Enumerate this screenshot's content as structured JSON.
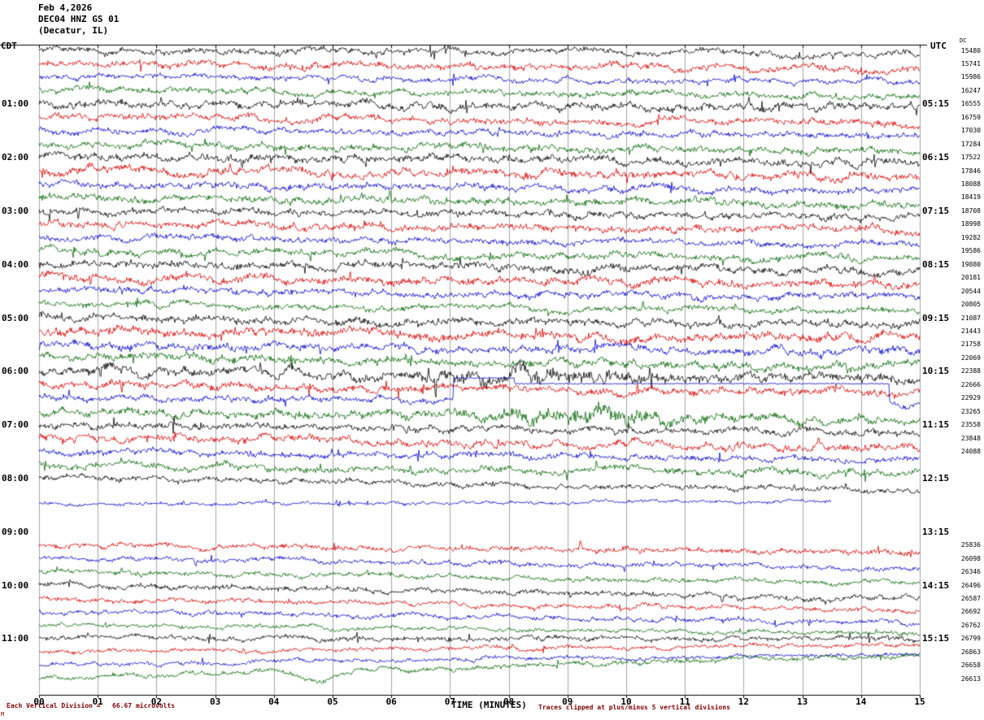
{
  "header": {
    "date": "Feb 4,2026",
    "station": "DEC04 HNZ GS 01",
    "location": "(Decatur, IL)"
  },
  "axes": {
    "left_tz": "CDT",
    "right_tz": "UTC",
    "values_header": "DC",
    "xlabel": "TIME (MINUTES)",
    "x_ticks": [
      "00",
      "01",
      "02",
      "03",
      "04",
      "05",
      "06",
      "07",
      "08",
      "09",
      "10",
      "11",
      "12",
      "13",
      "14",
      "15"
    ]
  },
  "footer": {
    "left": "Each Vertical Division =   66.67 microvolts",
    "right": "Traces clipped at plus/minus 5 vertical divisions",
    "corner": "M"
  },
  "colors": {
    "black": "#000000",
    "red": "#d70000",
    "blue": "#0000cc",
    "green": "#006600",
    "grid": "#a6a6a6",
    "footer_text": "#800000"
  },
  "chart_data": {
    "type": "line",
    "subtype": "seismogram-helicorder",
    "title": "DEC04 HNZ GS 01 (Decatur, IL) Feb 4,2026",
    "xlabel": "TIME (MINUTES)",
    "x_range_minutes": [
      0,
      15
    ],
    "minutes_per_row": 15,
    "rows_per_hour": 4,
    "first_label_row": 4,
    "grid": "vertical-minute-lines",
    "note": "Continuous ambient seismic noise traces; each horizontal line spans 15 minutes; colors cycle black/red/blue/green; left margin = CDT start time of each hour, right margin = UTC time plus DC offset value per trace; station data gap between roughly 08:15 and 09:15 CDT; one blue trace (10:15 UTC hour) flatlines partway across.",
    "left_labels": [
      "01:00",
      "02:00",
      "03:00",
      "04:00",
      "05:00",
      "06:00",
      "07:00",
      "08:00",
      "09:00",
      "10:00",
      "11:00"
    ],
    "right_labels": [
      "05:15",
      "06:15",
      "07:15",
      "08:15",
      "09:15",
      "10:15",
      "11:15",
      "12:15",
      "13:15",
      "14:15",
      "15:15"
    ],
    "rows": [
      {
        "color": "black",
        "amp": 4.5,
        "drift": 6,
        "width": 1,
        "value": 15480
      },
      {
        "color": "red",
        "amp": 5.0,
        "drift": 7,
        "width": 1,
        "value": 15741
      },
      {
        "color": "blue",
        "amp": 4.0,
        "drift": 6,
        "width": 1,
        "value": 15986
      },
      {
        "color": "green",
        "amp": 4.5,
        "drift": 8,
        "width": 1,
        "value": 16247
      },
      {
        "color": "black",
        "amp": 5.5,
        "drift": 7,
        "width": 1,
        "value": 16555
      },
      {
        "color": "red",
        "amp": 5.0,
        "drift": 8,
        "width": 1,
        "value": 16759
      },
      {
        "color": "blue",
        "amp": 4.5,
        "drift": 7,
        "width": 1,
        "value": 17030
      },
      {
        "color": "green",
        "amp": 5.0,
        "drift": 9,
        "width": 1,
        "value": 17284
      },
      {
        "color": "black",
        "amp": 5.5,
        "drift": 8,
        "width": 1,
        "value": 17522
      },
      {
        "color": "red",
        "amp": 6.0,
        "drift": 8,
        "width": 1,
        "value": 17846
      },
      {
        "color": "blue",
        "amp": 5.0,
        "drift": 9,
        "width": 1,
        "value": 18088
      },
      {
        "color": "green",
        "amp": 5.5,
        "drift": 10,
        "width": 1,
        "value": 18419
      },
      {
        "color": "black",
        "amp": 5.0,
        "drift": 8,
        "width": 1,
        "value": 18708
      },
      {
        "color": "red",
        "amp": 5.5,
        "drift": 8,
        "width": 1,
        "value": 18998
      },
      {
        "color": "blue",
        "amp": 4.5,
        "drift": 9,
        "width": 1,
        "value": 19282
      },
      {
        "color": "green",
        "amp": 5.0,
        "drift": 10,
        "width": 1,
        "value": 19586
      },
      {
        "color": "black",
        "amp": 5.5,
        "drift": 9,
        "width": 1,
        "value": 19880
      },
      {
        "color": "red",
        "amp": 6.0,
        "drift": 10,
        "width": 1,
        "value": 20181
      },
      {
        "color": "blue",
        "amp": 5.0,
        "drift": 9,
        "width": 1,
        "value": 20544
      },
      {
        "color": "green",
        "amp": 4.5,
        "drift": 10,
        "width": 1,
        "value": 20805
      },
      {
        "color": "black",
        "amp": 5.5,
        "drift": 10,
        "width": 1,
        "value": 21087
      },
      {
        "color": "red",
        "amp": 6.5,
        "drift": 10,
        "width": 1,
        "value": 21443
      },
      {
        "color": "blue",
        "amp": 5.5,
        "drift": 11,
        "width": 1,
        "value": 21758
      },
      {
        "color": "green",
        "amp": 6.0,
        "drift": 12,
        "width": 1,
        "value": 22069
      },
      {
        "color": "black",
        "amp": 6.5,
        "drift": 10,
        "width": 1,
        "value": 22388,
        "bursts": [
          {
            "t": 0.55,
            "w": 0.25,
            "mult": 1.8
          }
        ]
      },
      {
        "color": "red",
        "amp": 5.5,
        "drift": 11,
        "width": 1,
        "value": 22666
      },
      {
        "color": "blue",
        "amp": 4.5,
        "drift": 10,
        "width": 1,
        "value": 22929,
        "flat": {
          "from": 0.47,
          "to": 0.965,
          "offset": -24,
          "step_at": 0.54,
          "step_dy": 7
        }
      },
      {
        "color": "green",
        "amp": 6.0,
        "drift": 12,
        "width": 1,
        "value": 23265,
        "bursts": [
          {
            "t": 0.62,
            "w": 0.2,
            "mult": 2.2
          }
        ]
      },
      {
        "color": "black",
        "amp": 5.0,
        "drift": 10,
        "width": 1,
        "value": 23558
      },
      {
        "color": "red",
        "amp": 5.5,
        "drift": 11,
        "width": 1,
        "value": 23848
      },
      {
        "color": "blue",
        "amp": 4.5,
        "drift": 12,
        "width": 1,
        "value": 24088
      },
      {
        "color": "green",
        "amp": 5.0,
        "drift": 12,
        "width": 1,
        "value": null
      },
      {
        "color": "black",
        "amp": 4.0,
        "drift": 16,
        "width": 1,
        "value": null
      },
      {
        "color": "red",
        "amp": 0,
        "drift": 0,
        "width": 0,
        "value": null
      },
      {
        "color": "blue",
        "amp": 2.5,
        "drift": -4,
        "width": 0.9,
        "value": null
      },
      {
        "color": "green",
        "amp": 0,
        "drift": 0,
        "width": 0,
        "value": null
      },
      {
        "color": "black",
        "amp": 0,
        "drift": 0,
        "width": 0,
        "value": null
      },
      {
        "color": "red",
        "amp": 4.0,
        "drift": 10,
        "width": 1,
        "value": 25836
      },
      {
        "color": "blue",
        "amp": 3.5,
        "drift": 12,
        "width": 1,
        "value": 26098
      },
      {
        "color": "green",
        "amp": 3.5,
        "drift": 14,
        "width": 1,
        "value": 26346
      },
      {
        "color": "black",
        "amp": 4.0,
        "drift": 18,
        "width": 1,
        "value": 26496
      },
      {
        "color": "red",
        "amp": 3.5,
        "drift": 16,
        "width": 1,
        "value": 26587
      },
      {
        "color": "blue",
        "amp": 3.5,
        "drift": 14,
        "width": 1,
        "value": 26692
      },
      {
        "color": "green",
        "amp": 3.0,
        "drift": 10,
        "width": 1,
        "value": 26762
      },
      {
        "color": "black",
        "amp": 3.5,
        "drift": 0,
        "width": 1,
        "value": 26799
      },
      {
        "color": "red",
        "amp": 3.0,
        "drift": -8,
        "width": 1,
        "value": 26863
      },
      {
        "color": "blue",
        "amp": 3.0,
        "drift": -14,
        "width": 1,
        "value": 26658
      },
      {
        "color": "green",
        "amp": 3.5,
        "drift": -28,
        "width": 1,
        "value": 26613,
        "bursts": [
          {
            "t": 0.32,
            "w": 0.06,
            "dy": 14
          }
        ]
      }
    ]
  }
}
